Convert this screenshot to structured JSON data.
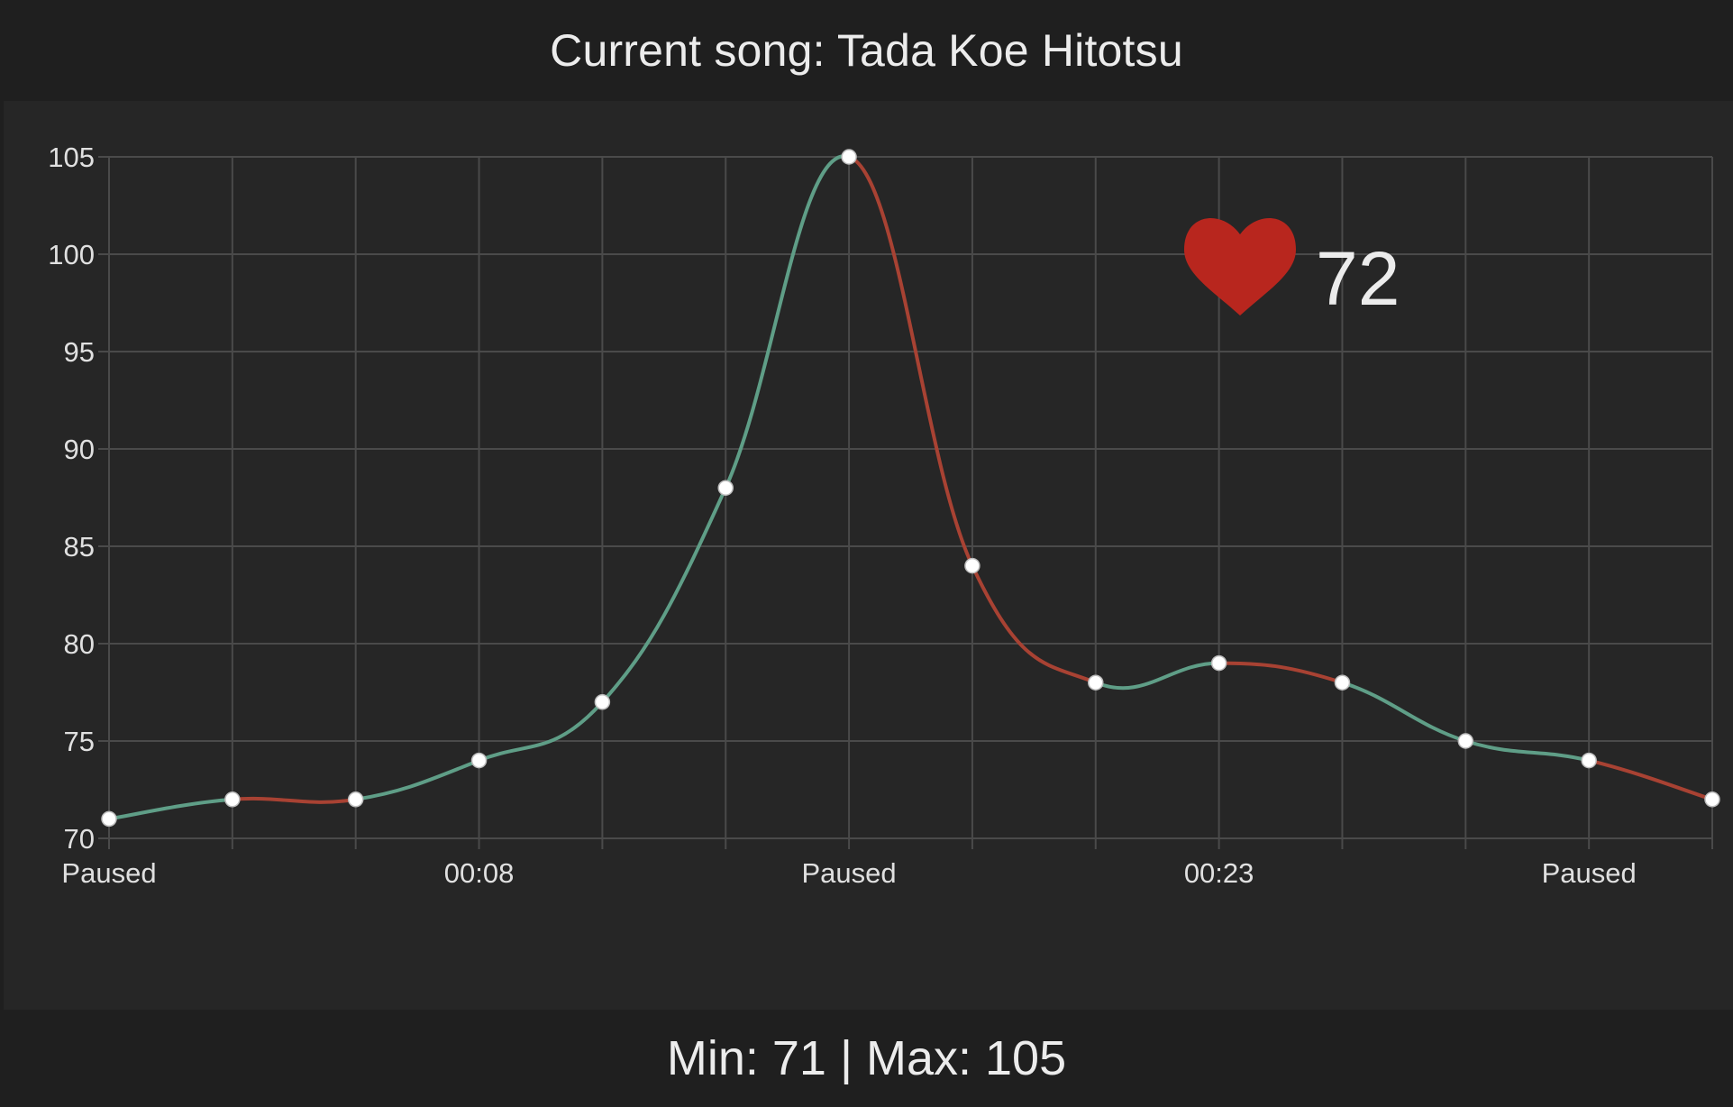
{
  "header": {
    "title": "Current song: Tada Koe Hitotsu"
  },
  "badge": {
    "icon": "heart-icon",
    "heart_color": "#b8261e",
    "value": "72"
  },
  "footer": {
    "stats": "Min: 71 | Max: 105"
  },
  "chart_data": {
    "type": "line",
    "x_tick_labels": [
      "Paused",
      "",
      "",
      "00:08",
      "",
      "",
      "Paused",
      "",
      "",
      "00:23",
      "",
      "",
      "Paused",
      ""
    ],
    "values": [
      71,
      72,
      72,
      74,
      77,
      88,
      105,
      84,
      78,
      79,
      78,
      75,
      74,
      72
    ],
    "ylim": [
      70,
      105
    ],
    "yticks": [
      70,
      75,
      80,
      85,
      90,
      95,
      100,
      105
    ],
    "grid": true,
    "colors": {
      "rising": "#5f9e87",
      "falling": "#a84233",
      "point_fill": "#ffffff",
      "grid": "#4a4a4a",
      "tick_text": "#e0e0e0"
    }
  }
}
